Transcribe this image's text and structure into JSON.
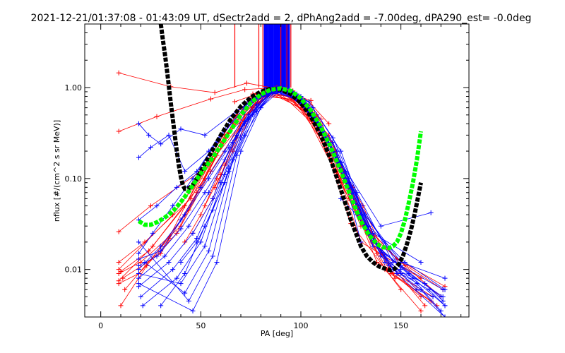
{
  "chart_data": {
    "type": "line",
    "title": "2021-12-21/01:37:08 - 01:43:09 UT, dSectr2add = 2, dPhAng2add = -7.00deg, dPA290_est=  -0.0deg",
    "xlabel": "PA [deg]",
    "ylabel": "nflux [#/(cm^2 s sr MeV)]",
    "xlim": [
      -8,
      184
    ],
    "ylim": [
      0.003,
      5.0
    ],
    "yscale": "log",
    "xticks": [
      0,
      50,
      100,
      150
    ],
    "xtick_labels": [
      "0",
      "50",
      "100",
      "150"
    ],
    "yticks": [
      0.01,
      0.1,
      1.0
    ],
    "ytick_labels": [
      "0.01",
      "0.10",
      "1.00"
    ],
    "grid": false,
    "legend": "none",
    "colors": {
      "red_traces": "#ff0000",
      "blue_traces": "#0000ff",
      "black_fit": "#000000",
      "green_fit": "#00ff00"
    },
    "red_sample_traces": [
      {
        "x": [
          9,
          35,
          57,
          73,
          87,
          105,
          125,
          150
        ],
        "y": [
          1.45,
          1.02,
          0.88,
          1.12,
          0.98,
          0.72,
          0.032,
          0.006
        ]
      },
      {
        "x": [
          9,
          28,
          55,
          72,
          88,
          110,
          130,
          160
        ],
        "y": [
          0.33,
          0.48,
          0.75,
          0.95,
          1.0,
          0.45,
          0.02,
          0.008
        ]
      },
      {
        "x": [
          9,
          25,
          50,
          70,
          90,
          112,
          132,
          150,
          171
        ],
        "y": [
          0.026,
          0.05,
          0.12,
          0.6,
          0.95,
          0.3,
          0.03,
          0.012,
          0.006
        ]
      },
      {
        "x": [
          9,
          22,
          45,
          62,
          85,
          105,
          128,
          146,
          160
        ],
        "y": [
          0.012,
          0.02,
          0.06,
          0.3,
          0.92,
          0.5,
          0.05,
          0.009,
          0.005
        ]
      },
      {
        "x": [
          9,
          20,
          40,
          55,
          80,
          100,
          120,
          135,
          158
        ],
        "y": [
          0.009,
          0.012,
          0.03,
          0.12,
          0.85,
          0.7,
          0.1,
          0.02,
          0.006
        ]
      },
      {
        "x": [
          10,
          24,
          42,
          60,
          78,
          95,
          118,
          138,
          166
        ],
        "y": [
          0.0095,
          0.016,
          0.05,
          0.25,
          0.8,
          0.82,
          0.15,
          0.012,
          0.005
        ]
      },
      {
        "x": [
          11,
          30,
          48,
          66,
          84,
          102,
          124,
          143,
          165
        ],
        "y": [
          0.008,
          0.015,
          0.07,
          0.4,
          0.92,
          0.6,
          0.06,
          0.01,
          0.0045
        ]
      },
      {
        "x": [
          9,
          26,
          52,
          68,
          90,
          108,
          126,
          140,
          162
        ],
        "y": [
          0.0075,
          0.018,
          0.1,
          0.5,
          0.97,
          0.5,
          0.08,
          0.015,
          0.004
        ]
      },
      {
        "x": [
          12,
          34,
          50,
          74,
          92,
          114,
          134,
          152,
          170
        ],
        "y": [
          0.006,
          0.022,
          0.11,
          0.75,
          0.95,
          0.3,
          0.025,
          0.011,
          0.005
        ]
      },
      {
        "x": [
          9,
          36,
          58,
          76,
          90,
          116,
          130,
          148,
          172
        ],
        "y": [
          0.01,
          0.04,
          0.18,
          0.85,
          1.0,
          0.25,
          0.035,
          0.013,
          0.0065
        ]
      },
      {
        "x": [
          10,
          23,
          44,
          64,
          86,
          104,
          122,
          145,
          168
        ],
        "y": [
          0.004,
          0.011,
          0.045,
          0.32,
          0.9,
          0.65,
          0.12,
          0.009,
          0.004
        ]
      },
      {
        "x": [
          9,
          19,
          38,
          56,
          82,
          98,
          120,
          142,
          160
        ],
        "y": [
          0.007,
          0.009,
          0.025,
          0.16,
          0.88,
          0.78,
          0.09,
          0.01,
          0.0035
        ]
      },
      {
        "x": [
          67,
          78,
          85,
          90,
          96,
          104,
          114
        ],
        "y": [
          0.7,
          0.85,
          0.9,
          1.0,
          0.92,
          0.7,
          0.4
        ]
      },
      {
        "x": [
          57,
          66,
          74,
          80,
          88,
          98,
          106,
          112
        ],
        "y": [
          0.08,
          0.2,
          0.45,
          0.7,
          0.96,
          0.75,
          0.5,
          0.3
        ]
      },
      {
        "x": [
          42,
          50,
          58,
          70,
          80,
          95,
          110,
          125,
          138
        ],
        "y": [
          0.02,
          0.04,
          0.1,
          0.4,
          0.8,
          0.75,
          0.35,
          0.08,
          0.015
        ]
      },
      {
        "x": [
          46,
          56,
          62,
          72,
          84,
          100,
          116,
          131,
          147
        ],
        "y": [
          0.025,
          0.06,
          0.14,
          0.5,
          0.88,
          0.6,
          0.2,
          0.05,
          0.008
        ]
      },
      {
        "x": [
          52,
          60,
          68,
          76,
          88,
          106,
          118,
          130
        ],
        "y": [
          0.05,
          0.11,
          0.28,
          0.6,
          0.94,
          0.4,
          0.12,
          0.03
        ]
      }
    ],
    "blue_sample_traces": [
      {
        "x": [
          19,
          24,
          30,
          40,
          52,
          70,
          85,
          100,
          120,
          140,
          165
        ],
        "y": [
          0.4,
          0.3,
          0.24,
          0.35,
          0.3,
          0.6,
          0.95,
          0.7,
          0.15,
          0.03,
          0.042
        ]
      },
      {
        "x": [
          19,
          25,
          34,
          42,
          54,
          68,
          84,
          102,
          118,
          136,
          160
        ],
        "y": [
          0.17,
          0.22,
          0.3,
          0.12,
          0.2,
          0.55,
          0.9,
          0.72,
          0.2,
          0.025,
          0.012
        ]
      },
      {
        "x": [
          19,
          28,
          38,
          48,
          60,
          72,
          86,
          100,
          116,
          132,
          150,
          172
        ],
        "y": [
          0.035,
          0.05,
          0.08,
          0.12,
          0.3,
          0.6,
          0.92,
          0.75,
          0.25,
          0.04,
          0.012,
          0.008
        ]
      },
      {
        "x": [
          19,
          26,
          36,
          46,
          58,
          74,
          88,
          104,
          120,
          134,
          152,
          172
        ],
        "y": [
          0.015,
          0.025,
          0.05,
          0.1,
          0.25,
          0.7,
          0.95,
          0.6,
          0.15,
          0.03,
          0.012,
          0.006
        ]
      },
      {
        "x": [
          19,
          30,
          40,
          50,
          62,
          76,
          90,
          106,
          122,
          136,
          154,
          171
        ],
        "y": [
          0.01,
          0.018,
          0.035,
          0.08,
          0.2,
          0.75,
          0.97,
          0.5,
          0.12,
          0.02,
          0.009,
          0.005
        ]
      },
      {
        "x": [
          19,
          32,
          44,
          54,
          66,
          78,
          92,
          108,
          124,
          138,
          156,
          172
        ],
        "y": [
          0.008,
          0.014,
          0.03,
          0.07,
          0.25,
          0.78,
          0.95,
          0.45,
          0.09,
          0.018,
          0.008,
          0.004
        ]
      },
      {
        "x": [
          19,
          34,
          46,
          56,
          68,
          80,
          94,
          110,
          126,
          140,
          158,
          170
        ],
        "y": [
          0.0065,
          0.012,
          0.025,
          0.06,
          0.3,
          0.8,
          0.92,
          0.38,
          0.07,
          0.014,
          0.007,
          0.0035
        ]
      },
      {
        "x": [
          20,
          36,
          48,
          60,
          70,
          82,
          90,
          104,
          118,
          132,
          150,
          171
        ],
        "y": [
          0.005,
          0.01,
          0.022,
          0.09,
          0.35,
          0.82,
          0.98,
          0.55,
          0.18,
          0.04,
          0.011,
          0.006
        ]
      },
      {
        "x": [
          21,
          38,
          50,
          62,
          72,
          84,
          96,
          112,
          128,
          142,
          160,
          172
        ],
        "y": [
          0.004,
          0.008,
          0.02,
          0.11,
          0.4,
          0.86,
          0.9,
          0.3,
          0.05,
          0.012,
          0.006,
          0.003
        ]
      },
      {
        "x": [
          19,
          40,
          52,
          64,
          74,
          86,
          98,
          114,
          130,
          144,
          162,
          171
        ],
        "y": [
          0.009,
          0.007,
          0.018,
          0.13,
          0.45,
          0.9,
          0.85,
          0.25,
          0.04,
          0.011,
          0.007,
          0.0045
        ]
      },
      {
        "x": [
          22,
          42,
          54,
          66,
          76,
          88,
          100,
          116,
          132,
          146,
          164,
          172
        ],
        "y": [
          0.012,
          0.0055,
          0.016,
          0.16,
          0.5,
          0.93,
          0.8,
          0.2,
          0.03,
          0.01,
          0.006,
          0.004
        ]
      },
      {
        "x": [
          19,
          44,
          56,
          68,
          78,
          86,
          94,
          108,
          124,
          140,
          170
        ],
        "y": [
          0.02,
          0.0045,
          0.014,
          0.18,
          0.55,
          0.9,
          0.88,
          0.42,
          0.1,
          0.016,
          0.005
        ]
      },
      {
        "x": [
          19,
          46,
          58,
          70,
          80,
          88,
          102,
          118,
          134,
          148,
          172
        ],
        "y": [
          0.007,
          0.0035,
          0.012,
          0.2,
          0.6,
          0.95,
          0.7,
          0.17,
          0.025,
          0.009,
          0.003
        ]
      },
      {
        "x": [
          40,
          48,
          56,
          64,
          72,
          80,
          90,
          100,
          112,
          122,
          130
        ],
        "y": [
          0.012,
          0.02,
          0.045,
          0.12,
          0.3,
          0.6,
          0.95,
          0.78,
          0.3,
          0.1,
          0.02
        ]
      },
      {
        "x": [
          30,
          42,
          52,
          62,
          70,
          78,
          88,
          98,
          110,
          124,
          136
        ],
        "y": [
          0.004,
          0.009,
          0.03,
          0.09,
          0.28,
          0.65,
          0.97,
          0.8,
          0.32,
          0.08,
          0.018
        ]
      },
      {
        "x": [
          19,
          30,
          42,
          54,
          64,
          74,
          86,
          96,
          106,
          120,
          130,
          150
        ],
        "y": [
          0.013,
          0.016,
          0.04,
          0.1,
          0.22,
          0.5,
          0.9,
          0.88,
          0.6,
          0.2,
          0.05,
          0.01
        ]
      },
      {
        "x": [
          19,
          28,
          40,
          52,
          62,
          72,
          84,
          94,
          104,
          116,
          128,
          146
        ],
        "y": [
          0.011,
          0.014,
          0.028,
          0.07,
          0.16,
          0.42,
          0.86,
          0.9,
          0.7,
          0.28,
          0.07,
          0.012
        ]
      },
      {
        "x": [
          120,
          128,
          134,
          142,
          150,
          158,
          166
        ],
        "y": [
          0.06,
          0.04,
          0.025,
          0.014,
          0.009,
          0.006,
          0.005
        ]
      }
    ],
    "spike_lines_blue_x": [
      82,
      83,
      84,
      85,
      86,
      87,
      88,
      89,
      90,
      91,
      92,
      93,
      94
    ],
    "spike_lines_red_x": [
      67,
      79,
      81,
      90,
      93,
      95
    ],
    "spike_top_y": 5.0,
    "black_fit_curve": {
      "x": [
        30,
        31,
        32,
        33,
        34,
        35,
        36,
        37,
        38,
        39,
        40,
        41,
        42,
        44,
        46,
        48,
        50,
        55,
        60,
        65,
        70,
        75,
        80,
        85,
        90,
        95,
        100,
        105,
        110,
        115,
        120,
        125,
        130,
        133,
        136,
        139,
        142,
        145,
        147,
        149,
        151,
        153,
        155,
        157,
        159,
        160
      ],
      "y": [
        5.0,
        3.4,
        2.4,
        1.6,
        1.05,
        0.68,
        0.45,
        0.3,
        0.2,
        0.14,
        0.105,
        0.085,
        0.077,
        0.078,
        0.085,
        0.1,
        0.12,
        0.19,
        0.3,
        0.45,
        0.62,
        0.78,
        0.9,
        0.97,
        0.95,
        0.85,
        0.68,
        0.48,
        0.3,
        0.16,
        0.075,
        0.035,
        0.018,
        0.014,
        0.012,
        0.0108,
        0.0102,
        0.0098,
        0.0102,
        0.0115,
        0.014,
        0.019,
        0.027,
        0.042,
        0.07,
        0.09
      ]
    },
    "green_fit_curve": {
      "x": [
        19,
        22,
        25,
        28,
        31,
        34,
        37,
        40,
        44,
        48,
        52,
        56,
        60,
        65,
        70,
        75,
        80,
        85,
        90,
        95,
        100,
        105,
        110,
        115,
        120,
        125,
        130,
        134,
        138,
        141,
        144,
        146,
        148,
        150,
        152,
        154,
        156,
        158,
        160
      ],
      "y": [
        0.034,
        0.031,
        0.031,
        0.033,
        0.036,
        0.04,
        0.046,
        0.055,
        0.072,
        0.098,
        0.13,
        0.17,
        0.23,
        0.34,
        0.5,
        0.68,
        0.84,
        0.95,
        0.98,
        0.92,
        0.76,
        0.56,
        0.37,
        0.22,
        0.12,
        0.063,
        0.034,
        0.024,
        0.019,
        0.0175,
        0.0172,
        0.018,
        0.02,
        0.025,
        0.035,
        0.055,
        0.09,
        0.16,
        0.33
      ]
    }
  }
}
